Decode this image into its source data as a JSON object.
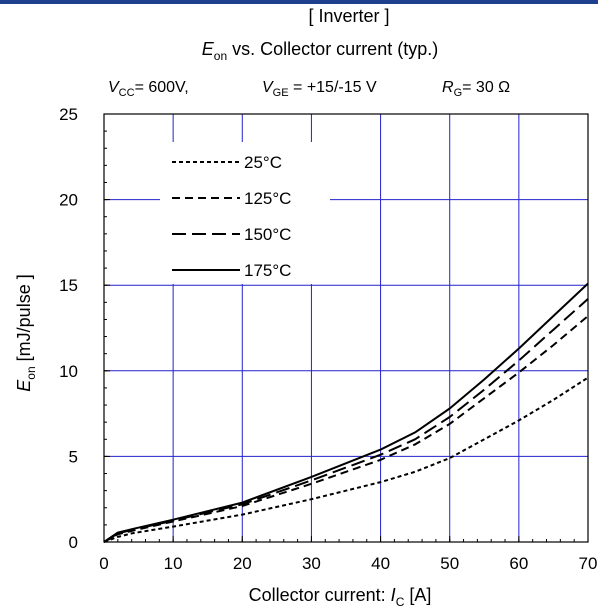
{
  "chart_data": {
    "type": "line",
    "title_line1": "[ Inverter ]",
    "title_line2": {
      "E": "E",
      "sub": "on",
      "rest": " vs.  Collector current  (typ.)"
    },
    "conditions": {
      "vcc": {
        "sym": "V",
        "sub": "CC",
        "text": "= 600V,"
      },
      "vge": {
        "sym": "V",
        "sub": "GE",
        "text": " = +15/-15 V"
      },
      "rg": {
        "sym": "R",
        "sub": "G",
        "text": "= 30 Ω"
      }
    },
    "xlabel": {
      "pre": "Collector current: ",
      "sym": "I",
      "sub": "C",
      "post": " [A]"
    },
    "ylabel": {
      "sym": "E",
      "sub": "on",
      "post": " [mJ/pulse ]"
    },
    "xlim": [
      0,
      70
    ],
    "ylim": [
      0,
      25
    ],
    "xticks": [
      "0",
      "10",
      "20",
      "30",
      "40",
      "50",
      "60",
      "70"
    ],
    "yticks": [
      "0",
      "5",
      "10",
      "15",
      "20",
      "25"
    ],
    "grid": true,
    "legend_position": "top-left",
    "colors": {
      "grid": "#2222cc",
      "curve": "#000000",
      "header_bar": "#1f3f8f"
    },
    "x": [
      0,
      2,
      4,
      10,
      20,
      30,
      40,
      45,
      50,
      55,
      60,
      65,
      70
    ],
    "series": [
      {
        "name": "25°C",
        "dash": "4,3",
        "values": [
          0,
          0.3,
          0.5,
          0.9,
          1.6,
          2.5,
          3.5,
          4.1,
          4.9,
          6.0,
          7.1,
          8.3,
          9.6
        ]
      },
      {
        "name": "125°C",
        "dash": "8,5",
        "values": [
          0,
          0.45,
          0.65,
          1.2,
          2.1,
          3.4,
          4.8,
          5.7,
          6.9,
          8.4,
          9.9,
          11.5,
          13.2
        ]
      },
      {
        "name": "150°C",
        "dash": "14,6",
        "values": [
          0,
          0.5,
          0.7,
          1.25,
          2.2,
          3.6,
          5.1,
          6.0,
          7.3,
          8.9,
          10.6,
          12.4,
          14.2
        ]
      },
      {
        "name": "175°C",
        "dash": "",
        "values": [
          0,
          0.55,
          0.75,
          1.3,
          2.3,
          3.8,
          5.4,
          6.4,
          7.8,
          9.5,
          11.3,
          13.2,
          15.1
        ]
      }
    ]
  }
}
